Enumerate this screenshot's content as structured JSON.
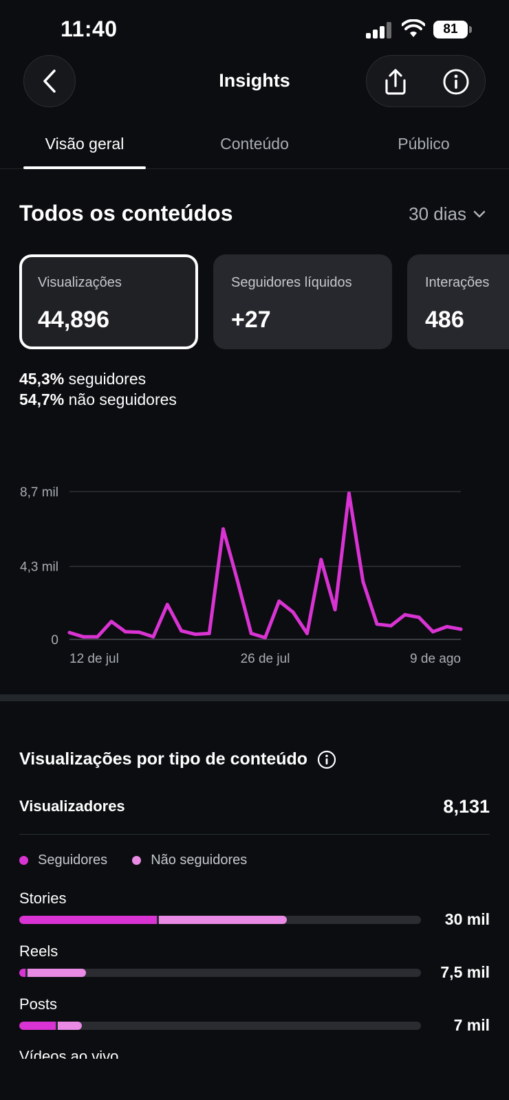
{
  "status": {
    "time": "11:40",
    "battery": "81"
  },
  "nav": {
    "title": "Insights"
  },
  "tabs": [
    {
      "label": "Visão geral",
      "active": true
    },
    {
      "label": "Conteúdo",
      "active": false
    },
    {
      "label": "Público",
      "active": false
    }
  ],
  "overview": {
    "title": "Todos os conteúdos",
    "range": "30 dias",
    "cards": [
      {
        "label": "Visualizações",
        "value": "44,896",
        "selected": true
      },
      {
        "label": "Seguidores líquidos",
        "value": "+27",
        "selected": false
      },
      {
        "label": "Interações",
        "value": "486",
        "selected": false
      }
    ],
    "split": {
      "followers_pct": "45,3%",
      "followers_label": "seguidores",
      "non_followers_pct": "54,7%",
      "non_followers_label": "não seguidores"
    }
  },
  "chart_data": {
    "type": "line",
    "y_ticks": [
      "8,7 mil",
      "4,3 mil",
      "0"
    ],
    "y_tick_values": [
      8.7,
      4.3,
      0
    ],
    "x_ticks": [
      "12 de jul",
      "26 de jul",
      "9 de ago"
    ],
    "x_tick_positions": [
      1,
      15,
      29
    ],
    "ylim": [
      0,
      8.7
    ],
    "grid": true,
    "color": "#d934d3",
    "series": [
      {
        "values": [
          0.4,
          0.15,
          0.15,
          1.05,
          0.45,
          0.42,
          0.15,
          2.05,
          0.5,
          0.3,
          0.35,
          6.5,
          3.5,
          0.35,
          0.1,
          2.25,
          1.6,
          0.35,
          4.7,
          1.75,
          8.6,
          3.4,
          0.9,
          0.8,
          1.45,
          1.3,
          0.45,
          0.75,
          0.6
        ]
      }
    ]
  },
  "content_types": {
    "title": "Visualizações por tipo de conteúdo",
    "viewers_label": "Visualizadores",
    "viewers_value": "8,131",
    "legend": [
      {
        "label": "Seguidores",
        "color": "#d934d3"
      },
      {
        "label": "Não seguidores",
        "color": "#e98ae4"
      }
    ],
    "scale_max": 45,
    "rows": [
      {
        "label": "Stories",
        "value": "30 mil",
        "followers": 15.4,
        "non_followers": 14.6
      },
      {
        "label": "Reels",
        "value": "7,5 mil",
        "followers": 0.7,
        "non_followers": 6.8
      },
      {
        "label": "Posts",
        "value": "7 mil",
        "followers": 4.1,
        "non_followers": 2.9
      }
    ],
    "next_row_label": "Vídeos ao vivo"
  }
}
